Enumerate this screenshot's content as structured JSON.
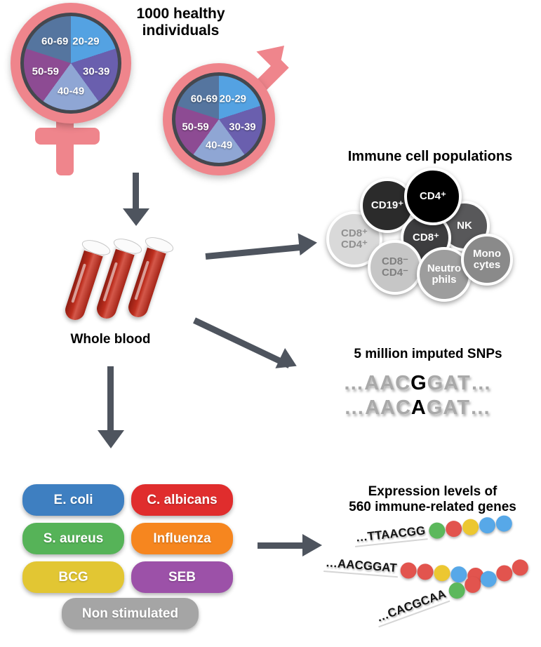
{
  "title": "1000 healthy individuals",
  "demographics": {
    "age_groups": [
      "20-29",
      "30-39",
      "40-49",
      "50-59",
      "60-69"
    ],
    "pie_colors": [
      "#54a2e2",
      "#6a5fae",
      "#8fa6d4",
      "#8d4b93",
      "#55759f"
    ],
    "symbol_color": "#ef858c"
  },
  "whole_blood": {
    "label": "Whole blood"
  },
  "immune_cells": {
    "title": "Immune cell populations",
    "cells": [
      {
        "label": "CD19⁺",
        "color": "#2b2b2b",
        "text_color": "#ffffff"
      },
      {
        "label": "CD4⁺",
        "color": "#000000",
        "text_color": "#ffffff"
      },
      {
        "label": "NK",
        "color": "#58585a",
        "text_color": "#ffffff"
      },
      {
        "label": "CD8⁺",
        "color": "#3d3d3f",
        "text_color": "#ffffff"
      },
      {
        "label": "CD8⁺\nCD4⁺",
        "color": "#d9d9d9",
        "text_color": "#8f8f8f"
      },
      {
        "label": "CD8⁻\nCD4⁻",
        "color": "#c6c6c6",
        "text_color": "#7f7f7f"
      },
      {
        "label": "Neutro\nphils",
        "color": "#9d9d9d",
        "text_color": "#ffffff"
      },
      {
        "label": "Mono\ncytes",
        "color": "#8a8a8a",
        "text_color": "#ffffff"
      }
    ]
  },
  "snps": {
    "title": "5 million imputed SNPs",
    "sequences": [
      {
        "pre": "…AAC",
        "snp": "G",
        "post": "GAT…"
      },
      {
        "pre": "…AAC",
        "snp": "A",
        "post": "GAT…"
      }
    ]
  },
  "stimuli": {
    "items": [
      {
        "label": "E. coli",
        "color": "#3e7fc1"
      },
      {
        "label": "C. albicans",
        "color": "#e02d2d"
      },
      {
        "label": "S. aureus",
        "color": "#56b358"
      },
      {
        "label": "Influenza",
        "color": "#f6861f"
      },
      {
        "label": "BCG",
        "color": "#e2c633"
      },
      {
        "label": "SEB",
        "color": "#9c51a8"
      },
      {
        "label": "Non stimulated",
        "color": "#a5a5a5"
      }
    ]
  },
  "expression": {
    "title_line1": "Expression levels of",
    "title_line2": "560 immune-related genes",
    "rows": [
      {
        "seq": "…TTAACGG",
        "dots": [
          "green",
          "red",
          "yellow",
          "blue",
          "blue"
        ]
      },
      {
        "seq": "…AACGGAT",
        "dots": [
          "red",
          "red",
          "yellow",
          "blue",
          "red"
        ]
      },
      {
        "seq": "…CACGCAA",
        "dots": [
          "green",
          "red",
          "blue",
          "red",
          "red"
        ]
      }
    ],
    "dot_palette": {
      "green": "#5cb85c",
      "red": "#e2544e",
      "yellow": "#ecc731",
      "blue": "#57a8e8"
    }
  },
  "arrow_color": "#4e545e"
}
